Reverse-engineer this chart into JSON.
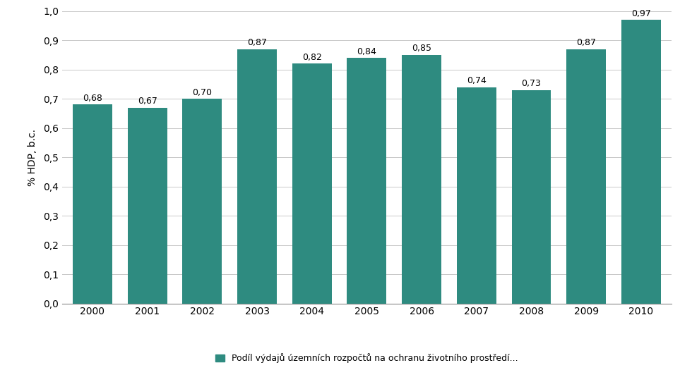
{
  "years": [
    "2000",
    "2001",
    "2002",
    "2003",
    "2004",
    "2005",
    "2006",
    "2007",
    "2008",
    "2009",
    "2010"
  ],
  "values": [
    0.68,
    0.67,
    0.7,
    0.87,
    0.82,
    0.84,
    0.85,
    0.74,
    0.73,
    0.87,
    0.97
  ],
  "bar_color": "#2e8b80",
  "bar_edge_color": "#2e8b80",
  "background_color": "#ffffff",
  "ylabel": "% HDP, b.c.",
  "ylim": [
    0.0,
    1.0
  ],
  "yticks": [
    0.0,
    0.1,
    0.2,
    0.3,
    0.4,
    0.5,
    0.6,
    0.7,
    0.8,
    0.9,
    1.0
  ],
  "ytick_labels": [
    "0,0",
    "0,1",
    "0,2",
    "0,3",
    "0,4",
    "0,5",
    "0,6",
    "0,7",
    "0,8",
    "0,9",
    "1,0"
  ],
  "grid_color": "#c8c8c8",
  "legend_label": "Podíl výdajů územních rozpočtů na ochranu životního prostředí...",
  "label_fontsize": 10,
  "axis_fontsize": 10,
  "legend_fontsize": 9,
  "value_label_fontsize": 9
}
